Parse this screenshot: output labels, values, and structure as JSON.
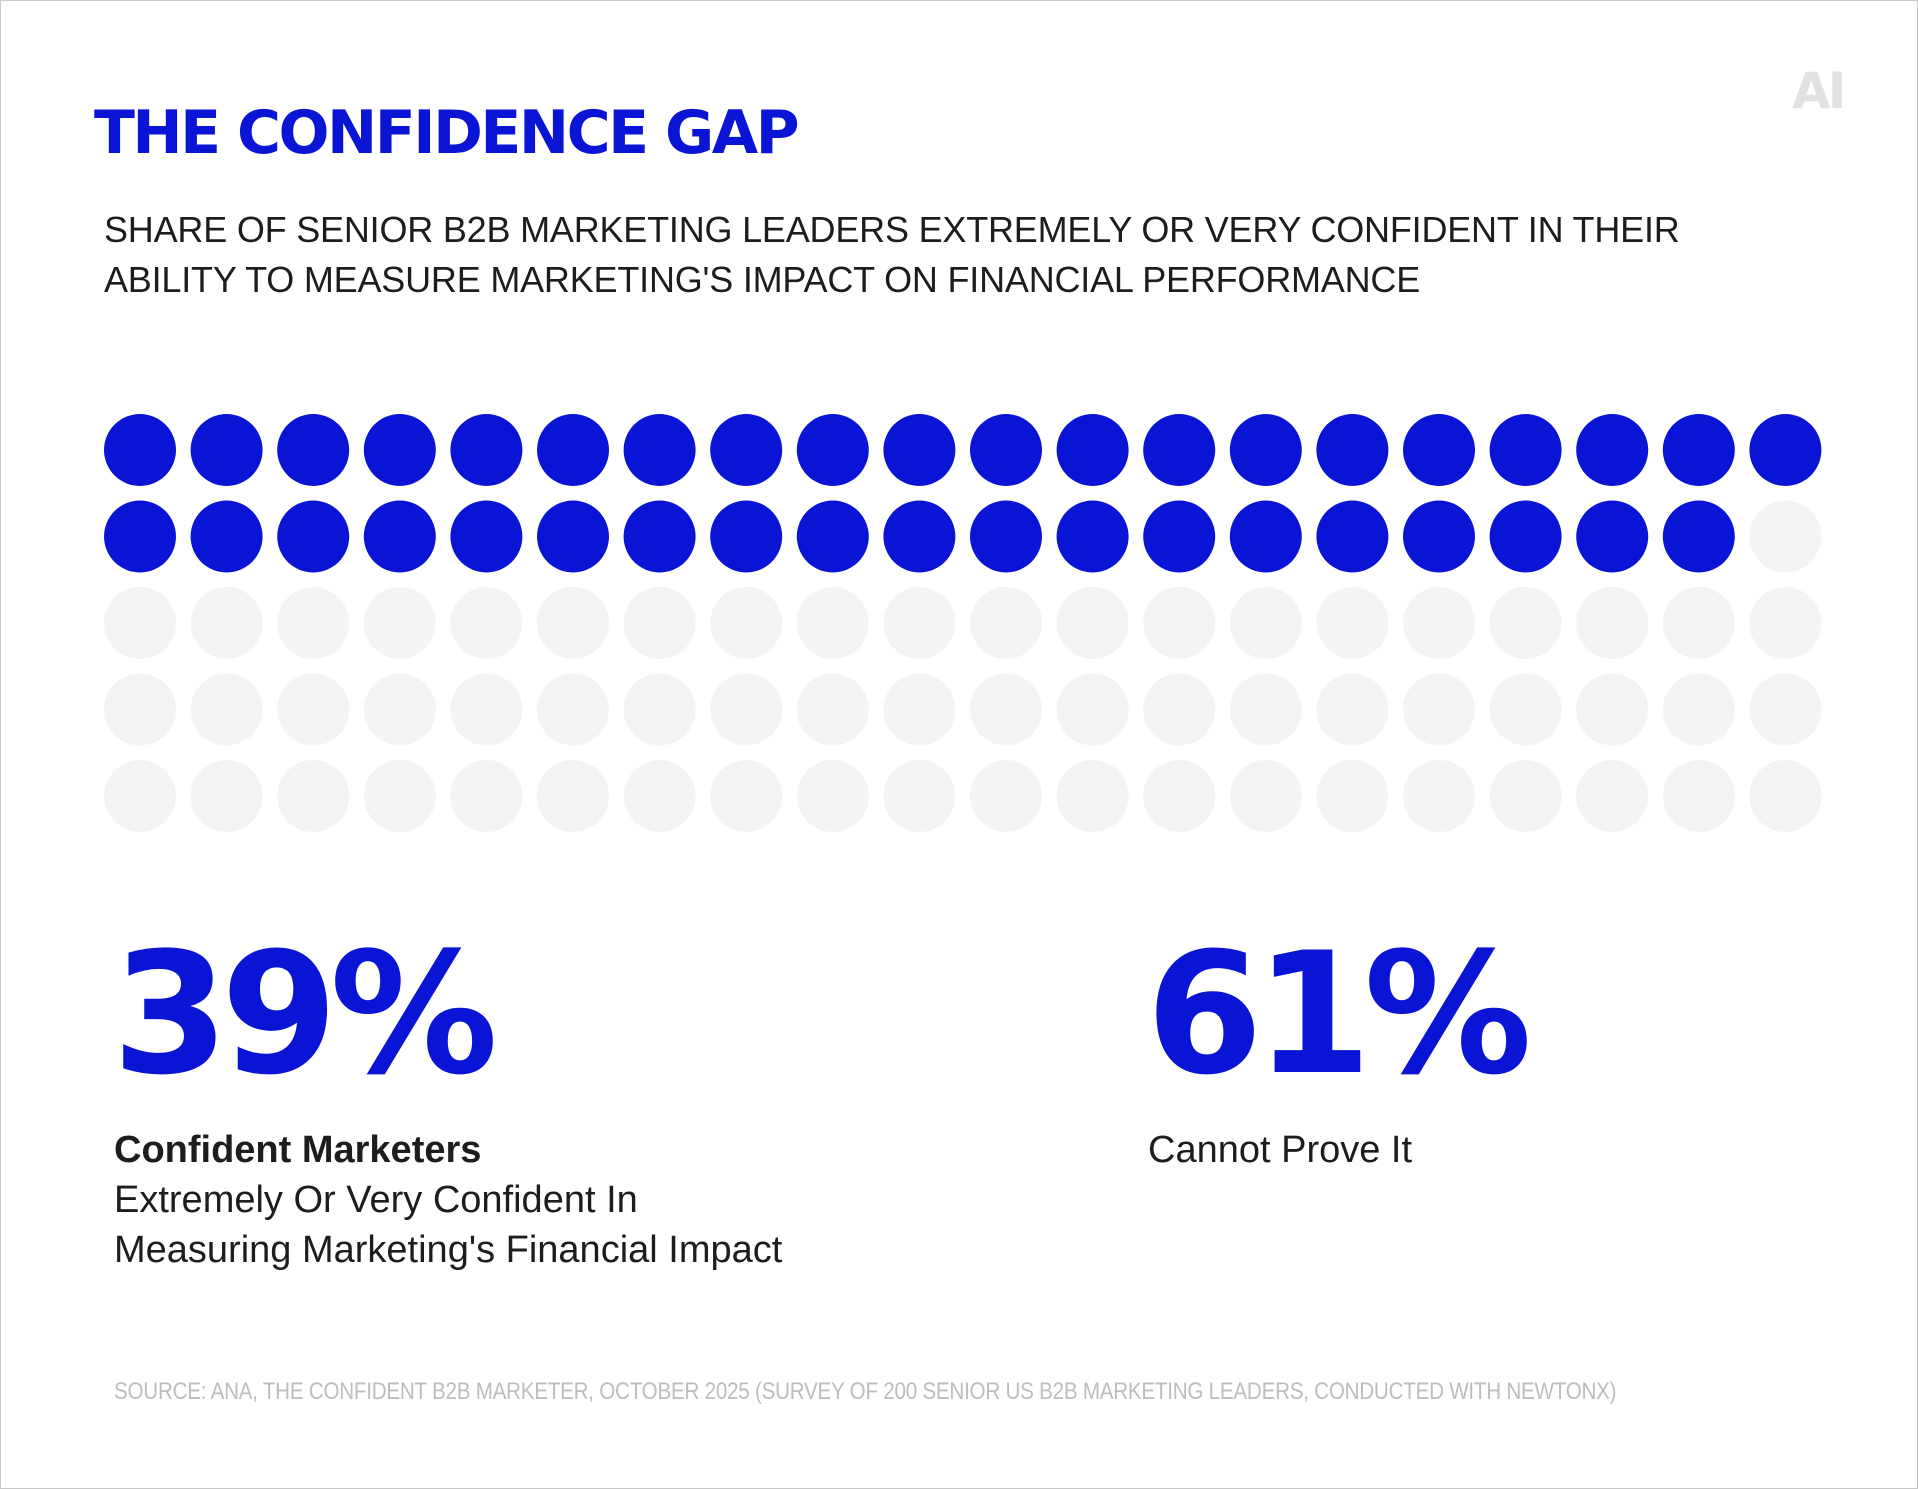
{
  "title": "THE CONFIDENCE GAP",
  "subtitle_lines": [
    "SHARE OF SENIOR B2B MARKETING LEADERS EXTREMELY OR VERY CONFIDENT IN THEIR",
    "ABILITY TO MEASURE MARKETING'S IMPACT ON FINANCIAL PERFORMANCE"
  ],
  "logo": "AI",
  "colors": {
    "accent": "#0a14d4",
    "empty": "#f4f4f4",
    "text": "#1d1d1d",
    "source": "#bdbdbd"
  },
  "stats": {
    "left": {
      "value": "39%",
      "label": "Confident Marketers",
      "description_lines": [
        "Extremely Or Very Confident In",
        "Measuring Marketing's Financial Impact"
      ]
    },
    "right": {
      "value": "61%",
      "label": "Cannot Prove It"
    }
  },
  "source": "SOURCE: ANA, THE CONFIDENT B2B MARKETER, OCTOBER 2025 (SURVEY OF 200 SENIOR US B2B MARKETING LEADERS, CONDUCTED WITH NEWTONX)",
  "chart_data": {
    "type": "waffle",
    "rows": 5,
    "columns": 20,
    "total": 100,
    "series": [
      {
        "name": "Confident Marketers",
        "value": 39,
        "color": "#0a14d4"
      },
      {
        "name": "Cannot Prove It",
        "value": 61,
        "color": "#f4f4f4"
      }
    ]
  }
}
